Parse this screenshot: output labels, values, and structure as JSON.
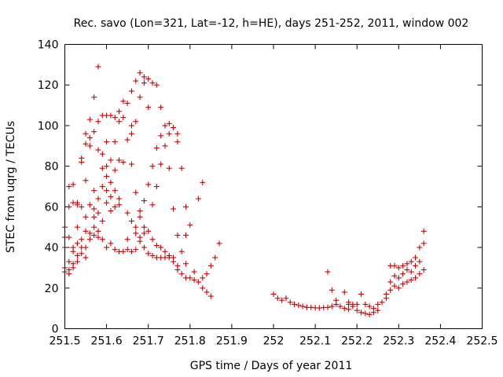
{
  "chart_data": {
    "type": "scatter",
    "title": "Rec. savo (Lon=321, Lat=-12, h=HE), days 251-252, 2011, window 002",
    "xlabel": "GPS time / Days of year 2011",
    "ylabel": "STEC from uqrg / TECUs",
    "xlim": [
      251.5,
      252.5
    ],
    "ylim": [
      0,
      140
    ],
    "xticks": [
      "251.5",
      "251.6",
      "251.7",
      "251.8",
      "251.9",
      "252",
      "252.1",
      "252.2",
      "252.3",
      "252.4",
      "252.5"
    ],
    "yticks": [
      "0",
      "20",
      "40",
      "60",
      "80",
      "100",
      "120",
      "140"
    ],
    "marker": "plus",
    "color": "#cc0000",
    "grid": false,
    "points": [
      [
        251.5,
        50
      ],
      [
        251.5,
        45
      ],
      [
        251.5,
        40
      ],
      [
        251.5,
        30
      ],
      [
        251.5,
        28
      ],
      [
        251.51,
        60
      ],
      [
        251.51,
        70
      ],
      [
        251.51,
        45
      ],
      [
        251.51,
        33
      ],
      [
        251.51,
        29
      ],
      [
        251.51,
        27
      ],
      [
        251.52,
        71
      ],
      [
        251.52,
        62
      ],
      [
        251.52,
        40
      ],
      [
        251.52,
        38
      ],
      [
        251.52,
        32
      ],
      [
        251.52,
        30
      ],
      [
        251.53,
        62
      ],
      [
        251.53,
        61
      ],
      [
        251.53,
        50
      ],
      [
        251.53,
        42
      ],
      [
        251.53,
        36
      ],
      [
        251.53,
        33
      ],
      [
        251.54,
        84
      ],
      [
        251.54,
        82
      ],
      [
        251.54,
        60
      ],
      [
        251.54,
        44
      ],
      [
        251.54,
        40
      ],
      [
        251.54,
        37
      ],
      [
        251.55,
        96
      ],
      [
        251.55,
        91
      ],
      [
        251.55,
        73
      ],
      [
        251.55,
        55
      ],
      [
        251.55,
        48
      ],
      [
        251.55,
        40
      ],
      [
        251.55,
        35
      ],
      [
        251.56,
        103
      ],
      [
        251.56,
        94
      ],
      [
        251.56,
        90
      ],
      [
        251.56,
        61
      ],
      [
        251.56,
        47
      ],
      [
        251.56,
        44
      ],
      [
        251.57,
        114
      ],
      [
        251.57,
        97
      ],
      [
        251.57,
        68
      ],
      [
        251.57,
        59
      ],
      [
        251.57,
        55
      ],
      [
        251.57,
        50
      ],
      [
        251.57,
        46
      ],
      [
        251.58,
        129
      ],
      [
        251.58,
        102
      ],
      [
        251.58,
        88
      ],
      [
        251.58,
        64
      ],
      [
        251.58,
        57
      ],
      [
        251.58,
        48
      ],
      [
        251.58,
        45
      ],
      [
        251.59,
        105
      ],
      [
        251.59,
        86
      ],
      [
        251.59,
        79
      ],
      [
        251.59,
        70
      ],
      [
        251.59,
        53
      ],
      [
        251.59,
        44
      ],
      [
        251.6,
        105
      ],
      [
        251.6,
        92
      ],
      [
        251.6,
        80
      ],
      [
        251.6,
        75
      ],
      [
        251.6,
        68
      ],
      [
        251.6,
        62
      ],
      [
        251.6,
        40
      ],
      [
        251.61,
        105
      ],
      [
        251.61,
        83
      ],
      [
        251.61,
        72
      ],
      [
        251.61,
        65
      ],
      [
        251.61,
        58
      ],
      [
        251.61,
        42
      ],
      [
        251.62,
        104
      ],
      [
        251.62,
        92
      ],
      [
        251.62,
        78
      ],
      [
        251.62,
        68
      ],
      [
        251.62,
        60
      ],
      [
        251.62,
        39
      ],
      [
        251.63,
        107
      ],
      [
        251.63,
        102
      ],
      [
        251.63,
        83
      ],
      [
        251.63,
        64
      ],
      [
        251.63,
        61
      ],
      [
        251.63,
        38
      ],
      [
        251.64,
        112
      ],
      [
        251.64,
        104
      ],
      [
        251.64,
        82
      ],
      [
        251.64,
        38
      ],
      [
        251.65,
        111
      ],
      [
        251.65,
        93
      ],
      [
        251.65,
        57
      ],
      [
        251.65,
        44
      ],
      [
        251.65,
        39
      ],
      [
        251.66,
        117
      ],
      [
        251.66,
        100
      ],
      [
        251.66,
        96
      ],
      [
        251.66,
        81
      ],
      [
        251.66,
        53
      ],
      [
        251.66,
        38
      ],
      [
        251.67,
        122
      ],
      [
        251.67,
        102
      ],
      [
        251.67,
        67
      ],
      [
        251.67,
        50
      ],
      [
        251.67,
        47
      ],
      [
        251.67,
        39
      ],
      [
        251.68,
        126
      ],
      [
        251.68,
        114
      ],
      [
        251.68,
        58
      ],
      [
        251.68,
        55
      ],
      [
        251.68,
        45
      ],
      [
        251.68,
        43
      ],
      [
        251.69,
        124
      ],
      [
        251.69,
        121
      ],
      [
        251.69,
        63
      ],
      [
        251.69,
        50
      ],
      [
        251.69,
        47
      ],
      [
        251.69,
        40
      ],
      [
        251.7,
        123
      ],
      [
        251.7,
        109
      ],
      [
        251.7,
        71
      ],
      [
        251.7,
        48
      ],
      [
        251.7,
        37
      ],
      [
        251.71,
        121
      ],
      [
        251.71,
        80
      ],
      [
        251.71,
        61
      ],
      [
        251.71,
        44
      ],
      [
        251.71,
        36
      ],
      [
        251.72,
        120
      ],
      [
        251.72,
        89
      ],
      [
        251.72,
        70
      ],
      [
        251.72,
        41
      ],
      [
        251.72,
        35
      ],
      [
        251.73,
        109
      ],
      [
        251.73,
        95
      ],
      [
        251.73,
        81
      ],
      [
        251.73,
        40
      ],
      [
        251.73,
        35
      ],
      [
        251.74,
        100
      ],
      [
        251.74,
        90
      ],
      [
        251.74,
        38
      ],
      [
        251.74,
        35
      ],
      [
        251.75,
        101
      ],
      [
        251.75,
        96
      ],
      [
        251.75,
        79
      ],
      [
        251.75,
        36
      ],
      [
        251.75,
        35
      ],
      [
        251.76,
        99
      ],
      [
        251.76,
        59
      ],
      [
        251.76,
        35
      ],
      [
        251.76,
        33
      ],
      [
        251.77,
        96
      ],
      [
        251.77,
        92
      ],
      [
        251.77,
        46
      ],
      [
        251.77,
        31
      ],
      [
        251.77,
        29
      ],
      [
        251.78,
        79
      ],
      [
        251.78,
        38
      ],
      [
        251.78,
        27
      ],
      [
        251.79,
        60
      ],
      [
        251.79,
        46
      ],
      [
        251.79,
        32
      ],
      [
        251.79,
        25
      ],
      [
        251.8,
        51
      ],
      [
        251.8,
        25
      ],
      [
        251.81,
        28
      ],
      [
        251.81,
        24
      ],
      [
        251.82,
        64
      ],
      [
        251.82,
        23
      ],
      [
        251.83,
        72
      ],
      [
        251.83,
        25
      ],
      [
        251.83,
        20
      ],
      [
        251.84,
        27
      ],
      [
        251.84,
        18
      ],
      [
        251.85,
        31
      ],
      [
        251.85,
        16
      ],
      [
        251.86,
        35
      ],
      [
        251.87,
        42
      ],
      [
        252.0,
        17
      ],
      [
        252.01,
        15
      ],
      [
        252.02,
        14
      ],
      [
        252.03,
        15
      ],
      [
        252.04,
        13
      ],
      [
        252.05,
        12
      ],
      [
        252.06,
        11.5
      ],
      [
        252.07,
        11
      ],
      [
        252.08,
        10.5
      ],
      [
        252.09,
        10.5
      ],
      [
        252.1,
        10.3
      ],
      [
        252.11,
        10.2
      ],
      [
        252.12,
        10.4
      ],
      [
        252.13,
        28
      ],
      [
        252.13,
        10.5
      ],
      [
        252.14,
        19
      ],
      [
        252.14,
        11
      ],
      [
        252.15,
        14
      ],
      [
        252.15,
        12
      ],
      [
        252.16,
        11
      ],
      [
        252.17,
        18
      ],
      [
        252.17,
        10
      ],
      [
        252.18,
        13
      ],
      [
        252.18,
        12
      ],
      [
        252.18,
        9.5
      ],
      [
        252.19,
        12
      ],
      [
        252.19,
        11
      ],
      [
        252.2,
        9
      ],
      [
        252.2,
        12
      ],
      [
        252.21,
        8
      ],
      [
        252.21,
        17
      ],
      [
        252.22,
        7.5
      ],
      [
        252.22,
        12
      ],
      [
        252.23,
        7
      ],
      [
        252.23,
        11
      ],
      [
        252.24,
        8
      ],
      [
        252.24,
        10
      ],
      [
        252.25,
        9
      ],
      [
        252.25,
        12
      ],
      [
        252.26,
        13
      ],
      [
        252.27,
        15
      ],
      [
        252.27,
        17
      ],
      [
        252.28,
        19
      ],
      [
        252.28,
        23
      ],
      [
        252.28,
        31
      ],
      [
        252.29,
        21
      ],
      [
        252.29,
        26
      ],
      [
        252.29,
        31
      ],
      [
        252.3,
        20
      ],
      [
        252.3,
        25
      ],
      [
        252.3,
        30
      ],
      [
        252.31,
        22
      ],
      [
        252.31,
        27
      ],
      [
        252.31,
        31
      ],
      [
        252.32,
        23
      ],
      [
        252.32,
        29
      ],
      [
        252.32,
        32
      ],
      [
        252.33,
        24
      ],
      [
        252.33,
        28
      ],
      [
        252.33,
        33
      ],
      [
        252.34,
        25
      ],
      [
        252.34,
        31
      ],
      [
        252.34,
        35
      ],
      [
        252.35,
        27
      ],
      [
        252.35,
        33
      ],
      [
        252.35,
        40
      ],
      [
        252.36,
        29
      ],
      [
        252.36,
        42
      ],
      [
        252.36,
        48
      ]
    ]
  }
}
